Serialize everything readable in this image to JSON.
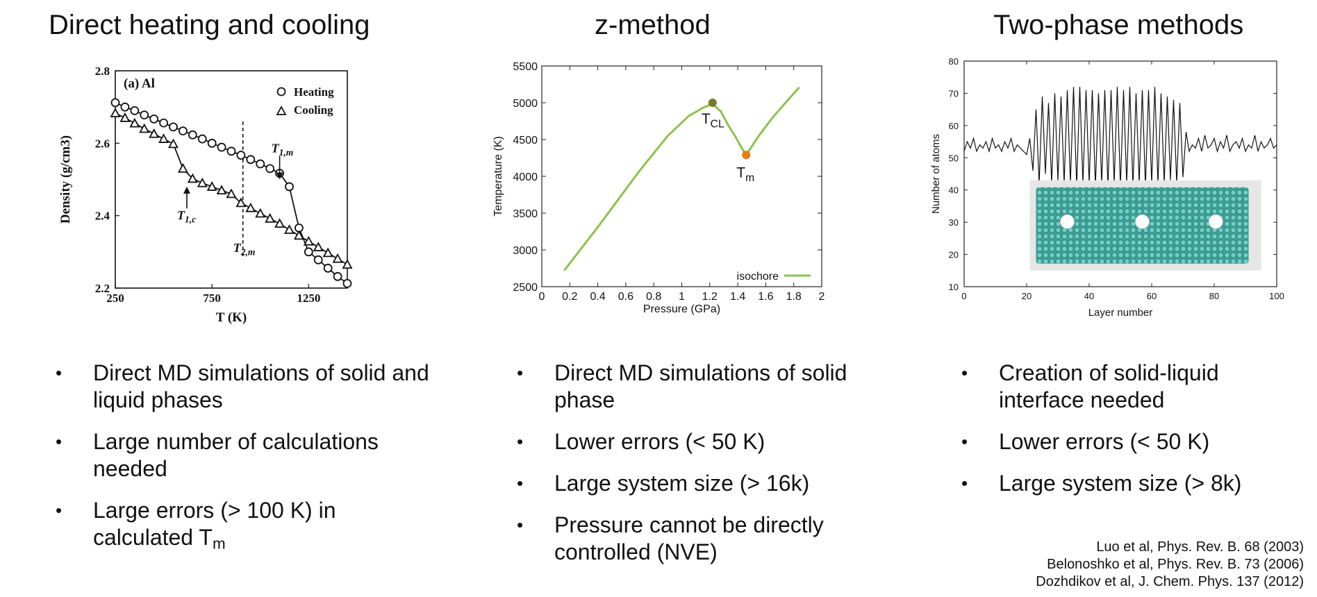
{
  "columns": [
    {
      "title": "Direct heating and cooling",
      "bullets": [
        {
          "text": "Direct MD simulations of solid and liquid phases"
        },
        {
          "text": "Large number of calculations needed"
        },
        {
          "text": "Large errors (> 100 K) in calculated T",
          "sub": "m"
        }
      ]
    },
    {
      "title": "z-method",
      "bullets": [
        {
          "text": "Direct MD simulations of solid phase"
        },
        {
          "text": "Lower errors (< 50 K)"
        },
        {
          "text": "Large system size (> 16k)"
        },
        {
          "text": "Pressure cannot be directly controlled (NVE)"
        }
      ]
    },
    {
      "title": "Two-phase methods",
      "bullets": [
        {
          "text": "Creation of solid-liquid interface needed"
        },
        {
          "text": "Lower errors (< 50 K)"
        },
        {
          "text": "Large system size (> 8k)"
        }
      ]
    }
  ],
  "references": [
    "Luo et al, Phys. Rev. B. 68 (2003)",
    "Belonoshko et al, Phys. Rev. B. 73 (2006)",
    "Dozhdikov et al, J. Chem. Phys. 137 (2012)"
  ],
  "chart_data": [
    {
      "type": "line",
      "panel_label": "(a) Al",
      "xlabel": "T (K)",
      "ylabel": "Density (g/cm3)",
      "xlim": [
        250,
        1450
      ],
      "ylim": [
        2.2,
        2.8
      ],
      "xticks": [
        "250",
        "750",
        "1250"
      ],
      "yticks": [
        "2.2",
        "2.4",
        "2.6",
        "2.8"
      ],
      "series": [
        {
          "name": "Heating",
          "marker": "circle",
          "x": [
            250,
            300,
            350,
            400,
            450,
            500,
            550,
            600,
            650,
            700,
            750,
            800,
            850,
            900,
            950,
            1000,
            1050,
            1100,
            1150,
            1200,
            1250,
            1300,
            1350,
            1400,
            1450
          ],
          "y": [
            2.712,
            2.7,
            2.69,
            2.678,
            2.667,
            2.656,
            2.645,
            2.634,
            2.623,
            2.612,
            2.6,
            2.589,
            2.578,
            2.567,
            2.555,
            2.543,
            2.53,
            2.517,
            2.48,
            2.366,
            2.3,
            2.278,
            2.255,
            2.232,
            2.213
          ]
        },
        {
          "name": "Cooling",
          "marker": "triangle",
          "x": [
            250,
            300,
            350,
            400,
            450,
            500,
            550,
            600,
            650,
            700,
            750,
            800,
            850,
            900,
            950,
            1000,
            1050,
            1100,
            1150,
            1200,
            1250,
            1300,
            1350,
            1400,
            1450
          ],
          "y": [
            2.683,
            2.67,
            2.655,
            2.64,
            2.626,
            2.612,
            2.598,
            2.53,
            2.502,
            2.49,
            2.48,
            2.47,
            2.46,
            2.435,
            2.421,
            2.406,
            2.392,
            2.378,
            2.361,
            2.345,
            2.329,
            2.313,
            2.297,
            2.281,
            2.265
          ]
        }
      ],
      "annotations": [
        {
          "base": "T",
          "sub": "1,m",
          "x": 1100
        },
        {
          "base": "T",
          "sub": "1,c",
          "x": 620
        },
        {
          "base": "T",
          "sub": "2,m",
          "x": 910
        }
      ],
      "dashed_line_x": 910
    },
    {
      "type": "line",
      "xlabel": "Pressure (GPa)",
      "ylabel": "Temperature (K)",
      "xlim": [
        0,
        2
      ],
      "ylim": [
        2500,
        5500
      ],
      "xticks": [
        "0",
        "0.2",
        "0.4",
        "0.6",
        "0.8",
        "1",
        "1.2",
        "1.4",
        "1.6",
        "1.8",
        "2"
      ],
      "yticks": [
        "2500",
        "3000",
        "3500",
        "4000",
        "4500",
        "5000",
        "5500"
      ],
      "series": [
        {
          "name": "isochore",
          "color": "#8bc34a",
          "x": [
            0.16,
            0.4,
            0.7,
            0.9,
            1.05,
            1.15,
            1.22,
            1.28,
            1.33,
            1.38,
            1.43,
            1.46,
            1.55,
            1.65,
            1.75,
            1.84
          ],
          "y": [
            2720,
            3310,
            4080,
            4550,
            4820,
            4930,
            4985,
            4880,
            4700,
            4550,
            4380,
            4290,
            4550,
            4800,
            5020,
            5210
          ]
        }
      ],
      "points": [
        {
          "base": "T",
          "sub": "CL",
          "x": 1.22,
          "y": 5000,
          "color": "#7b7a2a"
        },
        {
          "base": "T",
          "sub": "m",
          "x": 1.46,
          "y": 4290,
          "color": "#f07a14"
        }
      ]
    },
    {
      "type": "line",
      "xlabel": "Layer number",
      "ylabel": "Number of atoms",
      "xlim": [
        0,
        100
      ],
      "ylim": [
        10,
        80
      ],
      "xticks": [
        "0",
        "20",
        "40",
        "60",
        "80",
        "100"
      ],
      "yticks": [
        "10",
        "20",
        "30",
        "40",
        "50",
        "60",
        "70",
        "80"
      ],
      "series": [
        {
          "name": "",
          "x": [
            0,
            1,
            2,
            3,
            4,
            5,
            6,
            7,
            8,
            9,
            10,
            11,
            12,
            13,
            14,
            15,
            16,
            17,
            18,
            19,
            20,
            21,
            22,
            23,
            24,
            25,
            26,
            27,
            28,
            29,
            30,
            31,
            32,
            33,
            34,
            35,
            36,
            37,
            38,
            39,
            40,
            41,
            42,
            43,
            44,
            45,
            46,
            47,
            48,
            49,
            50,
            51,
            52,
            53,
            54,
            55,
            56,
            57,
            58,
            59,
            60,
            61,
            62,
            63,
            64,
            65,
            66,
            67,
            68,
            69,
            70,
            71,
            72,
            73,
            74,
            75,
            76,
            77,
            78,
            79,
            80,
            81,
            82,
            83,
            84,
            85,
            86,
            87,
            88,
            89,
            90,
            91,
            92,
            93,
            94,
            95,
            96,
            97,
            98,
            99,
            100
          ],
          "y": [
            52,
            55,
            53,
            56,
            52,
            54,
            53,
            55,
            52,
            56,
            53,
            54,
            52,
            55,
            53,
            56,
            52,
            54,
            53,
            52,
            51,
            56,
            46,
            65,
            42,
            69,
            45,
            67,
            42,
            70,
            43,
            69,
            42,
            71,
            42,
            72,
            41,
            72,
            42,
            71,
            42,
            71,
            41,
            70,
            42,
            71,
            41,
            71,
            42,
            72,
            41,
            71,
            42,
            72,
            41,
            70,
            42,
            71,
            41,
            71,
            42,
            72,
            42,
            70,
            42,
            69,
            43,
            68,
            42,
            67,
            44,
            58,
            52,
            54,
            53,
            56,
            52,
            57,
            53,
            54,
            56,
            52,
            55,
            53,
            57,
            52,
            54,
            55,
            53,
            56,
            52,
            54,
            53,
            57,
            52,
            55,
            53,
            54,
            56,
            53,
            54
          ]
        }
      ],
      "inset": "snapshot of solid-liquid simulation cell"
    }
  ]
}
